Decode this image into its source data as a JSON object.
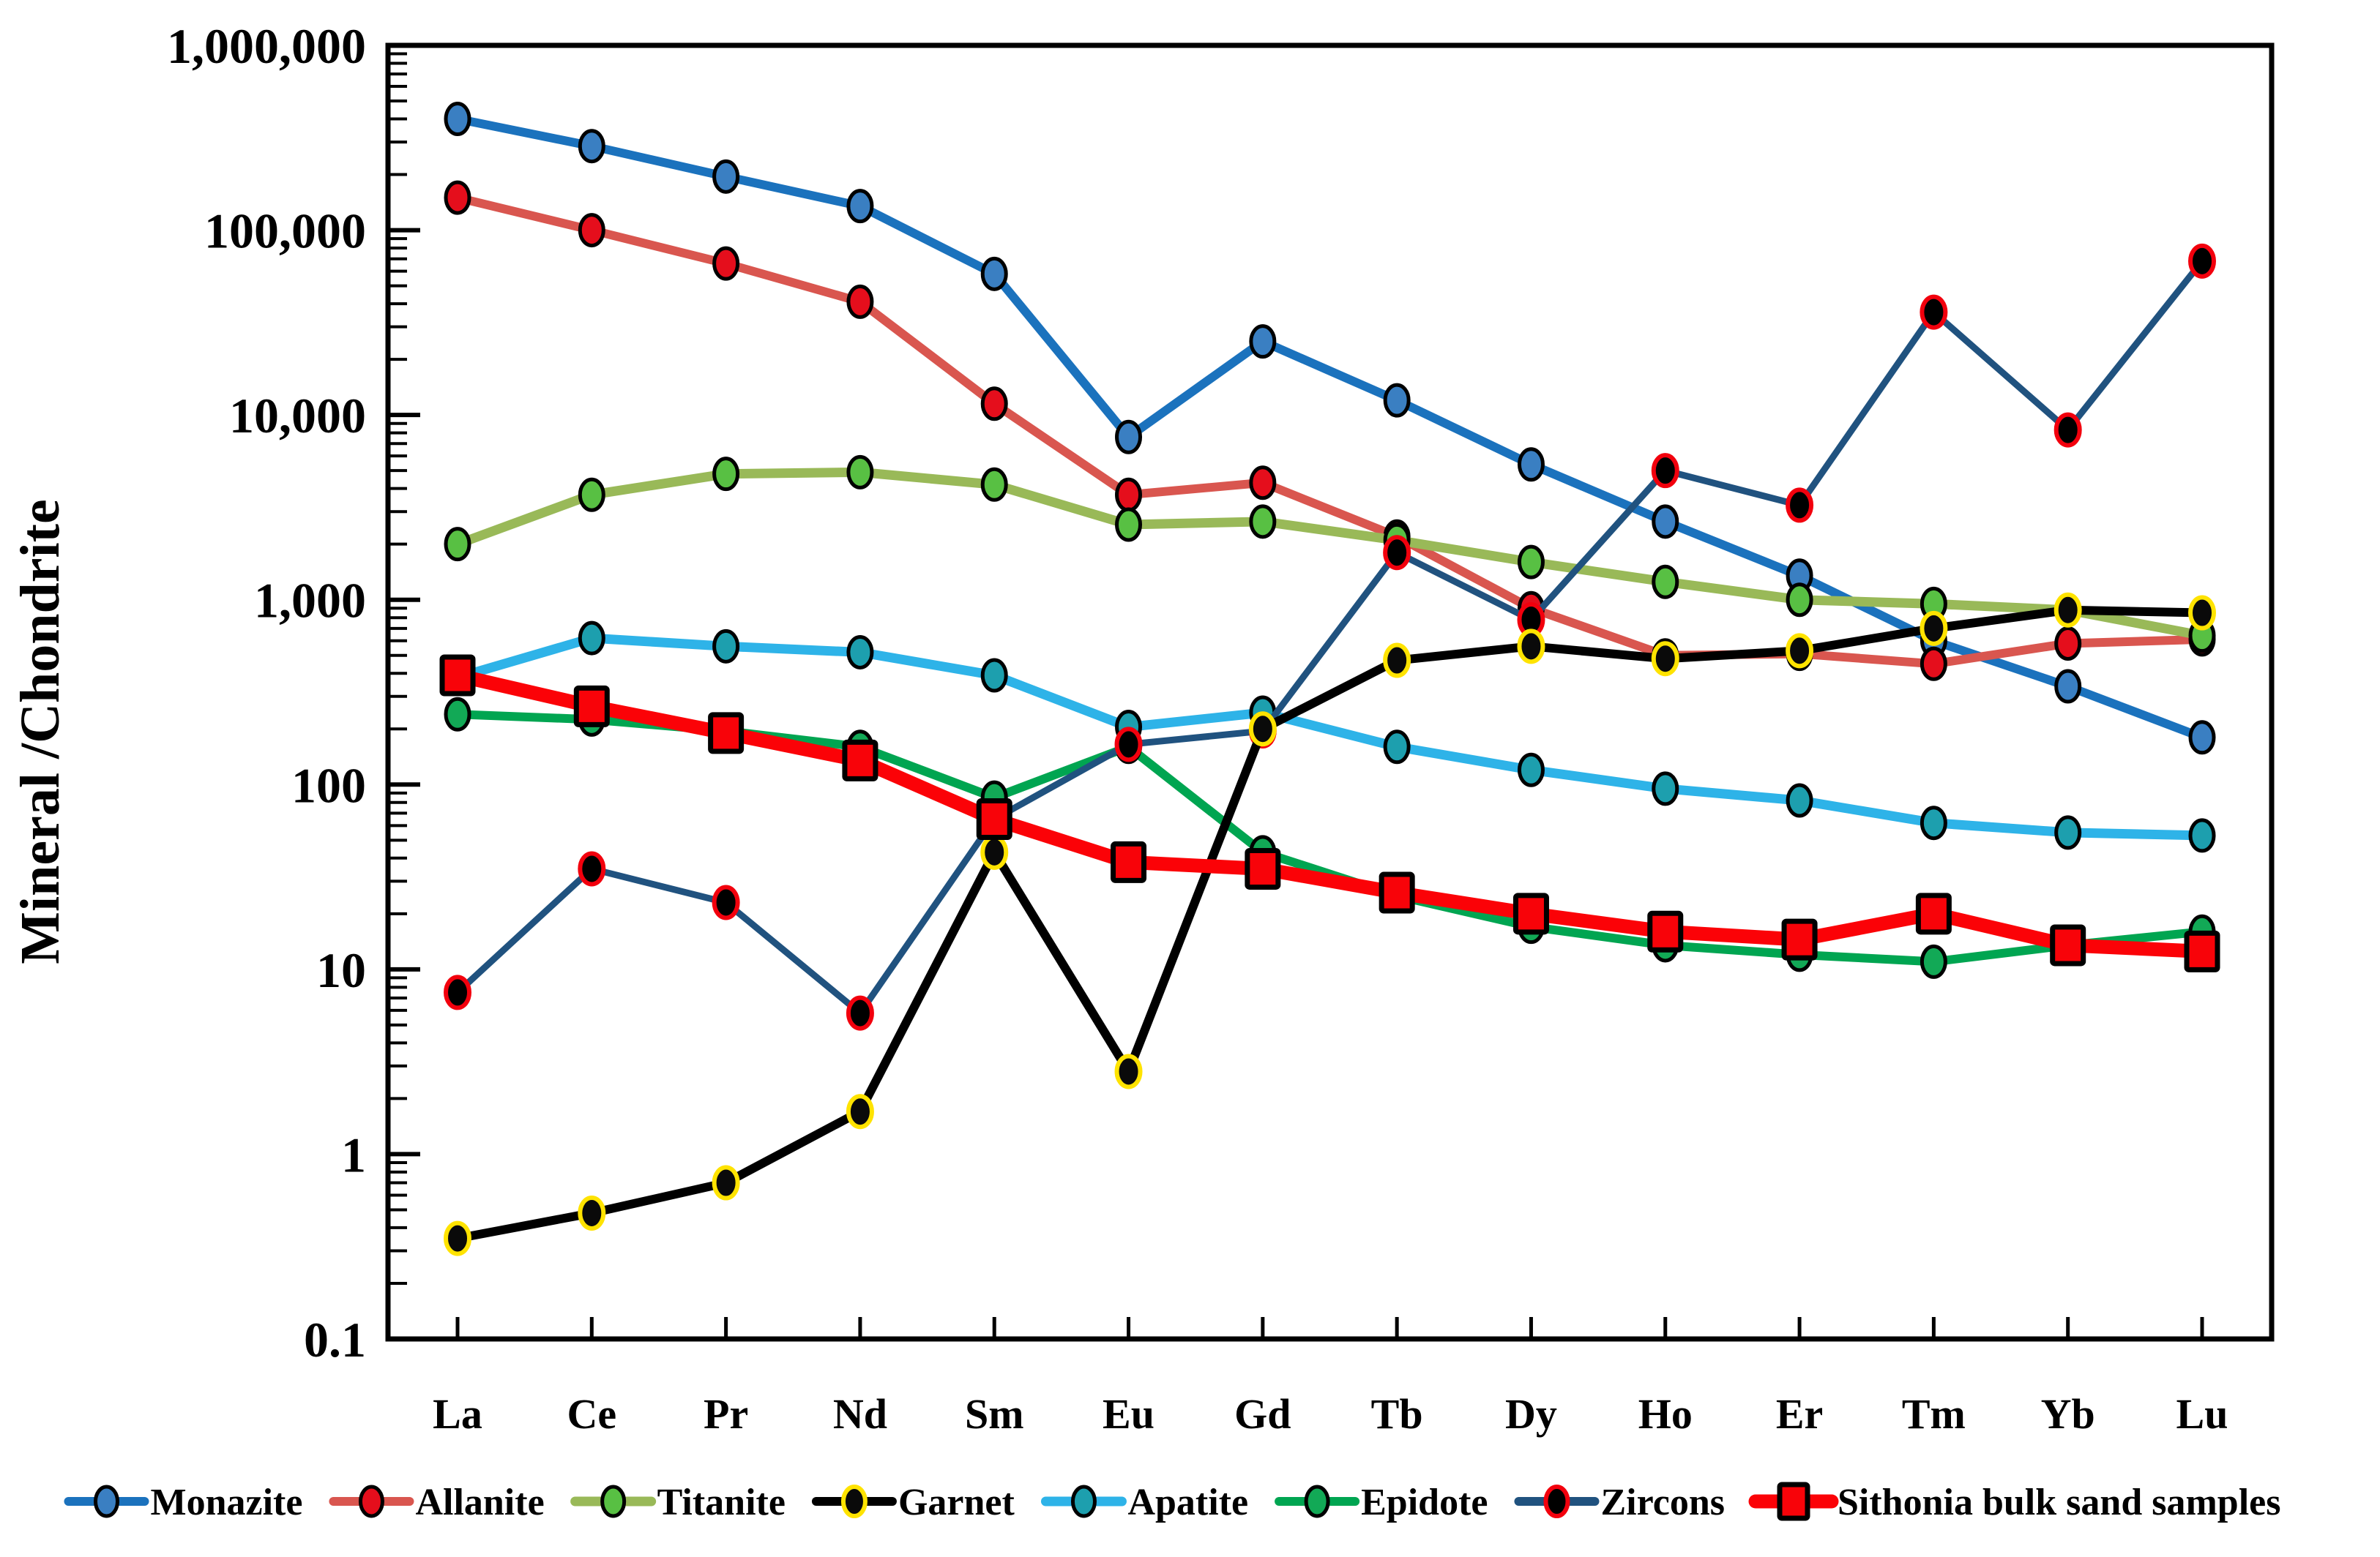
{
  "chart_data": {
    "type": "line",
    "title": "",
    "xlabel": "",
    "ylabel": "Mineral /Chondrite",
    "x_categories": [
      "La",
      "Ce",
      "Pr",
      "Nd",
      "Sm",
      "Eu",
      "Gd",
      "Tb",
      "Dy",
      "Ho",
      "Er",
      "Tm",
      "Yb",
      "Lu"
    ],
    "y_axis": {
      "scale": "log",
      "min": 0.1,
      "max": 1000000,
      "tick_values": [
        0.1,
        1,
        10,
        100,
        1000,
        10000,
        100000,
        1000000
      ],
      "tick_labels": [
        "0.1",
        "1",
        "10",
        "100",
        "1,000",
        "10,000",
        "100,000",
        "1,000,000"
      ],
      "grid": false
    },
    "legend_position": "bottom",
    "series": [
      {
        "name": "Monazite",
        "line_color": "#1b72bd",
        "marker": "circle",
        "marker_fill": "#3a7fc2",
        "marker_stroke": "#000000",
        "line_width": 12,
        "values": [
          400000,
          285000,
          195000,
          135000,
          58000,
          7600,
          25000,
          12000,
          5400,
          2650,
          1350,
          600,
          340,
          180
        ]
      },
      {
        "name": "Allanite",
        "line_color": "#d9564f",
        "marker": "circle",
        "marker_fill": "#e50e1c",
        "marker_stroke": "#000000",
        "line_width": 12,
        "values": [
          150000,
          100000,
          66000,
          41000,
          11500,
          3700,
          4300,
          2200,
          900,
          500,
          510,
          450,
          580,
          610
        ]
      },
      {
        "name": "Titanite",
        "line_color": "#99b958",
        "marker": "circle",
        "marker_fill": "#58c043",
        "marker_stroke": "#000000",
        "line_width": 13,
        "values": [
          2000,
          3700,
          4800,
          4900,
          4200,
          2550,
          2650,
          2100,
          1600,
          1250,
          1000,
          950,
          880,
          640
        ]
      },
      {
        "name": "Garnet",
        "line_color": "#000000",
        "marker": "circle",
        "marker_fill": "#0a0a0a",
        "marker_stroke": "#ffe300",
        "line_width": 12,
        "values": [
          0.35,
          0.48,
          0.7,
          1.7,
          43,
          2.8,
          200,
          470,
          560,
          480,
          530,
          700,
          880,
          850
        ]
      },
      {
        "name": "Apatite",
        "line_color": "#2eb3e8",
        "marker": "circle",
        "marker_fill": "#1d9fae",
        "marker_stroke": "#000000",
        "line_width": 13,
        "values": [
          380,
          620,
          560,
          520,
          390,
          205,
          245,
          160,
          120,
          95,
          82,
          62,
          55,
          53
        ]
      },
      {
        "name": "Epidote",
        "line_color": "#00a551",
        "marker": "circle",
        "marker_fill": "#12a956",
        "marker_stroke": "#000000",
        "line_width": 12,
        "values": [
          240,
          225,
          195,
          160,
          85,
          160,
          43,
          25,
          17,
          13.5,
          12,
          11,
          13.5,
          16
        ]
      },
      {
        "name": "Zircons",
        "line_color": "#20527f",
        "marker": "circle",
        "marker_fill": "#000000",
        "marker_stroke": "#f2000d",
        "line_width": 9,
        "values": [
          7.5,
          35,
          23,
          5.8,
          65,
          165,
          195,
          1800,
          780,
          5000,
          3250,
          36000,
          8300,
          68000
        ]
      },
      {
        "name": "Sithonia bulk sand samples",
        "line_color": "#fb0207",
        "marker": "square",
        "marker_fill": "#f80309",
        "marker_stroke": "#000000",
        "line_width": 19,
        "values": [
          390,
          265,
          190,
          135,
          65,
          38,
          35,
          26,
          20,
          16,
          14.5,
          20,
          13.5,
          12.5
        ]
      }
    ],
    "draw_order": [
      "Monazite",
      "Allanite",
      "Titanite",
      "Apatite",
      "Epidote",
      "Zircons",
      "Garnet",
      "Sithonia bulk sand samples"
    ]
  }
}
